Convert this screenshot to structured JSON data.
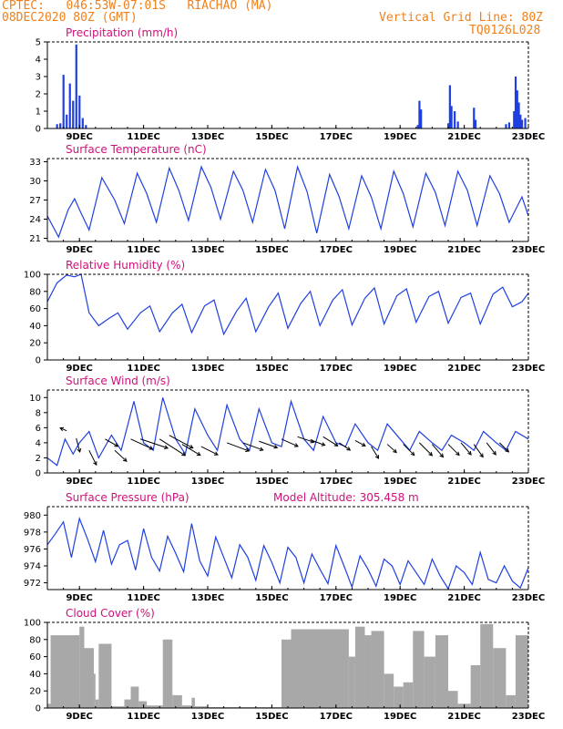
{
  "header": {
    "line1": "CPTEC:   046:53W-07:01S   RIACHAO (MA)",
    "line2": "08DEC2020 80Z (GMT)",
    "grid_note": "Vertical Grid Line: 80Z",
    "code": "TQ0126L028"
  },
  "colors": {
    "line": "#1f3fe0",
    "bar": "#1f3fe0",
    "cloud": "#a8a8a8",
    "title": "#d0107a",
    "header": "#f0801a"
  },
  "x_tick_labels": [
    "9DEC",
    "11DEC",
    "13DEC",
    "15DEC",
    "17DEC",
    "19DEC",
    "21DEC",
    "23DEC"
  ],
  "chart_data": [
    {
      "type": "bar",
      "title": "Precipitation (mm/h)",
      "ylim": [
        0,
        5
      ],
      "yticks": [
        0,
        1,
        2,
        3,
        4,
        5
      ],
      "x_range": [
        "8DEC2020 08Z",
        "23DEC2020 08Z"
      ],
      "values": [
        [
          0.3,
          0.25
        ],
        [
          0.4,
          0.3
        ],
        [
          0.5,
          3.1
        ],
        [
          0.6,
          0.8
        ],
        [
          0.7,
          2.6
        ],
        [
          0.8,
          1.6
        ],
        [
          0.9,
          4.85
        ],
        [
          1.0,
          1.9
        ],
        [
          1.1,
          0.6
        ],
        [
          1.2,
          0.2
        ],
        [
          11.55,
          0.2
        ],
        [
          11.6,
          1.6
        ],
        [
          11.65,
          1.1
        ],
        [
          12.5,
          0.3
        ],
        [
          12.55,
          2.5
        ],
        [
          12.6,
          1.3
        ],
        [
          12.7,
          1.0
        ],
        [
          12.8,
          0.4
        ],
        [
          13.3,
          1.2
        ],
        [
          13.35,
          0.5
        ],
        [
          14.3,
          0.25
        ],
        [
          14.4,
          0.35
        ],
        [
          14.55,
          1.0
        ],
        [
          14.6,
          3.0
        ],
        [
          14.65,
          2.2
        ],
        [
          14.7,
          1.5
        ],
        [
          14.75,
          0.8
        ],
        [
          14.8,
          0.5
        ],
        [
          14.9,
          0.6
        ]
      ]
    },
    {
      "type": "line",
      "title": "Surface Temperature (nC)",
      "ylim": [
        20.5,
        33.5
      ],
      "yticks": [
        21,
        24,
        27,
        30,
        33
      ],
      "x": [
        0,
        0.35,
        0.65,
        0.85,
        1.0,
        1.3,
        1.7,
        2.1,
        2.4,
        2.8,
        3.1,
        3.4,
        3.8,
        4.1,
        4.4,
        4.8,
        5.1,
        5.4,
        5.8,
        6.1,
        6.4,
        6.8,
        7.1,
        7.4,
        7.8,
        8.1,
        8.4,
        8.8,
        9.1,
        9.4,
        9.8,
        10.1,
        10.4,
        10.8,
        11.1,
        11.4,
        11.8,
        12.1,
        12.4,
        12.8,
        13.1,
        13.4,
        13.8,
        14.1,
        14.4,
        14.8,
        15.0
      ],
      "y": [
        24.5,
        21.2,
        25.5,
        27.2,
        25.5,
        22.3,
        30.5,
        27,
        23.3,
        31.2,
        28,
        23.5,
        32,
        28.5,
        23.8,
        32.2,
        29,
        24,
        31.5,
        28.5,
        23.5,
        31.8,
        28.5,
        22.5,
        32.2,
        28.3,
        21.8,
        31,
        27.5,
        22.5,
        30.8,
        27.5,
        22.5,
        31.5,
        28,
        22.8,
        31.2,
        28.2,
        23,
        31.5,
        28.5,
        23,
        30.8,
        28,
        23.5,
        27.5,
        24.5
      ]
    },
    {
      "type": "line",
      "title": "Relative Humidity (%)",
      "ylim": [
        0,
        100
      ],
      "yticks": [
        0,
        20,
        40,
        60,
        80,
        100
      ],
      "x": [
        0,
        0.3,
        0.6,
        0.85,
        1.05,
        1.3,
        1.6,
        1.9,
        2.2,
        2.5,
        2.9,
        3.2,
        3.5,
        3.9,
        4.2,
        4.5,
        4.9,
        5.2,
        5.5,
        5.9,
        6.2,
        6.5,
        6.9,
        7.2,
        7.5,
        7.9,
        8.2,
        8.5,
        8.9,
        9.2,
        9.5,
        9.9,
        10.2,
        10.5,
        10.9,
        11.2,
        11.5,
        11.9,
        12.2,
        12.5,
        12.9,
        13.2,
        13.5,
        13.9,
        14.2,
        14.5,
        14.8,
        15.0
      ],
      "y": [
        68,
        90,
        99,
        97,
        100,
        55,
        40,
        48,
        55,
        36,
        55,
        63,
        33,
        55,
        65,
        32,
        63,
        70,
        30,
        57,
        72,
        33,
        62,
        78,
        37,
        66,
        80,
        40,
        70,
        82,
        41,
        72,
        84,
        42,
        75,
        83,
        44,
        74,
        80,
        43,
        73,
        78,
        42,
        77,
        85,
        62,
        68,
        78
      ]
    },
    {
      "type": "line",
      "title": "Surface Wind (m/s)",
      "ylim": [
        0,
        11
      ],
      "yticks": [
        0,
        2,
        4,
        6,
        8,
        10
      ],
      "x": [
        0,
        0.3,
        0.55,
        0.8,
        1.0,
        1.3,
        1.6,
        2.0,
        2.3,
        2.7,
        3.0,
        3.3,
        3.6,
        4.0,
        4.3,
        4.6,
        5.0,
        5.3,
        5.6,
        6.0,
        6.3,
        6.6,
        7.0,
        7.3,
        7.6,
        8.0,
        8.3,
        8.6,
        9.0,
        9.3,
        9.6,
        10.0,
        10.3,
        10.6,
        11.0,
        11.3,
        11.6,
        12.0,
        12.3,
        12.6,
        13.0,
        13.3,
        13.6,
        14.0,
        14.3,
        14.6,
        15.0
      ],
      "y": [
        2.0,
        1.0,
        4.5,
        2.5,
        4.0,
        5.5,
        2.0,
        5.0,
        3.0,
        9.5,
        4.0,
        3.0,
        10.0,
        4.5,
        2.5,
        8.5,
        5.0,
        3.0,
        9.0,
        4.5,
        3.0,
        8.5,
        4.0,
        3.5,
        9.5,
        4.5,
        3.0,
        7.5,
        4.0,
        3.5,
        6.5,
        4.0,
        3.0,
        6.5,
        4.5,
        3.0,
        5.5,
        4.0,
        3.0,
        5.0,
        4.0,
        3.0,
        5.5,
        4.0,
        3.0,
        5.5,
        4.5
      ],
      "arrows": [
        [
          0.6,
          5.6,
          -0.7,
          0.3
        ],
        [
          0.9,
          4.6,
          0.4,
          -1.5
        ],
        [
          1.3,
          3.0,
          0.8,
          -1.6
        ],
        [
          1.8,
          4.5,
          1.4,
          -0.8
        ],
        [
          2.1,
          3.0,
          1.3,
          -1.2
        ],
        [
          2.6,
          4.5,
          2.4,
          -1.1
        ],
        [
          2.9,
          4.5,
          3.0,
          -1.0
        ],
        [
          3.5,
          4.5,
          2.8,
          -1.8
        ],
        [
          3.8,
          5.0,
          2.6,
          -1.4
        ],
        [
          4.2,
          3.8,
          2.0,
          -1.2
        ],
        [
          4.8,
          3.5,
          1.8,
          -0.9
        ],
        [
          5.6,
          4.0,
          2.4,
          -0.9
        ],
        [
          6.1,
          4.0,
          2.2,
          -0.8
        ],
        [
          6.6,
          4.2,
          2.0,
          -0.7
        ],
        [
          7.3,
          4.5,
          1.8,
          -0.8
        ],
        [
          7.8,
          4.8,
          1.8,
          -0.6
        ],
        [
          8.2,
          4.4,
          1.6,
          -0.6
        ],
        [
          8.6,
          4.8,
          1.6,
          -1.0
        ],
        [
          9.1,
          4.0,
          1.2,
          -0.8
        ],
        [
          9.6,
          4.3,
          1.1,
          -0.6
        ],
        [
          10.1,
          3.5,
          0.8,
          -1.3
        ],
        [
          10.6,
          3.8,
          1.0,
          -0.9
        ],
        [
          11.1,
          3.8,
          1.2,
          -1.2
        ],
        [
          11.6,
          4.0,
          1.4,
          -1.4
        ],
        [
          12.0,
          3.8,
          1.2,
          -1.4
        ],
        [
          12.5,
          3.8,
          1.2,
          -1.2
        ],
        [
          12.9,
          4.0,
          1.1,
          -1.3
        ],
        [
          13.3,
          3.8,
          1.0,
          -1.4
        ],
        [
          13.7,
          4.0,
          1.0,
          -1.3
        ],
        [
          14.1,
          4.0,
          1.0,
          -1.0
        ]
      ]
    },
    {
      "type": "line",
      "title": "Surface Pressure (hPa)",
      "subtitle": "Model Altitude: 305.458 m",
      "ylim": [
        971.2,
        981
      ],
      "yticks": [
        972,
        974,
        976,
        978,
        980
      ],
      "x": [
        0,
        0.25,
        0.5,
        0.75,
        1.0,
        1.25,
        1.5,
        1.75,
        2.0,
        2.25,
        2.5,
        2.75,
        3.0,
        3.25,
        3.5,
        3.75,
        4.0,
        4.25,
        4.5,
        4.75,
        5.0,
        5.25,
        5.5,
        5.75,
        6.0,
        6.25,
        6.5,
        6.75,
        7.0,
        7.25,
        7.5,
        7.75,
        8.0,
        8.25,
        8.5,
        8.75,
        9.0,
        9.25,
        9.5,
        9.75,
        10.0,
        10.25,
        10.5,
        10.75,
        11.0,
        11.25,
        11.5,
        11.75,
        12.0,
        12.25,
        12.5,
        12.75,
        13.0,
        13.25,
        13.5,
        13.75,
        14.0,
        14.25,
        14.5,
        14.75,
        15.0
      ],
      "y": [
        976.5,
        977.8,
        979.2,
        975.0,
        979.6,
        977.2,
        974.5,
        978.2,
        974.2,
        976.5,
        977.0,
        973.5,
        978.4,
        975.0,
        973.4,
        977.5,
        975.5,
        973.3,
        979.0,
        974.6,
        972.8,
        977.4,
        975.0,
        972.6,
        976.5,
        975.0,
        972.3,
        976.4,
        974.4,
        972.0,
        976.2,
        975.0,
        972.0,
        975.4,
        973.6,
        971.9,
        976.4,
        974.0,
        971.5,
        975.2,
        973.6,
        971.6,
        974.8,
        974.0,
        971.8,
        974.6,
        973.2,
        971.8,
        974.8,
        972.8,
        971.3,
        974.0,
        973.2,
        971.8,
        975.6,
        972.4,
        972.0,
        974.0,
        972.2,
        971.4,
        973.8
      ]
    },
    {
      "type": "bar",
      "title": "Cloud Cover (%)",
      "ylim": [
        0,
        100
      ],
      "yticks": [
        0,
        20,
        40,
        60,
        80,
        100
      ],
      "segments": [
        [
          0,
          0.1,
          5
        ],
        [
          0.1,
          1.0,
          85
        ],
        [
          1.0,
          1.15,
          95
        ],
        [
          1.15,
          1.45,
          70
        ],
        [
          1.45,
          1.5,
          40
        ],
        [
          1.5,
          1.6,
          10
        ],
        [
          1.6,
          2.0,
          75
        ],
        [
          2.0,
          2.4,
          2
        ],
        [
          2.4,
          2.6,
          10
        ],
        [
          2.6,
          2.85,
          25
        ],
        [
          2.85,
          3.1,
          8
        ],
        [
          3.1,
          3.6,
          3
        ],
        [
          3.6,
          3.9,
          80
        ],
        [
          3.9,
          4.2,
          15
        ],
        [
          4.2,
          4.5,
          3
        ],
        [
          4.5,
          4.6,
          12
        ],
        [
          4.6,
          5.0,
          2
        ],
        [
          5.0,
          7.3,
          1
        ],
        [
          7.3,
          7.6,
          80
        ],
        [
          7.6,
          9.4,
          92
        ],
        [
          9.4,
          9.6,
          60
        ],
        [
          9.6,
          9.9,
          95
        ],
        [
          9.9,
          10.1,
          85
        ],
        [
          10.1,
          10.5,
          90
        ],
        [
          10.5,
          10.8,
          40
        ],
        [
          10.8,
          11.1,
          25
        ],
        [
          11.1,
          11.4,
          30
        ],
        [
          11.4,
          11.75,
          90
        ],
        [
          11.75,
          12.1,
          60
        ],
        [
          12.1,
          12.5,
          85
        ],
        [
          12.5,
          12.8,
          20
        ],
        [
          12.8,
          13.2,
          5
        ],
        [
          13.2,
          13.5,
          50
        ],
        [
          13.5,
          13.9,
          98
        ],
        [
          13.9,
          14.3,
          70
        ],
        [
          14.3,
          14.6,
          15
        ],
        [
          14.6,
          15.0,
          85
        ]
      ]
    }
  ]
}
